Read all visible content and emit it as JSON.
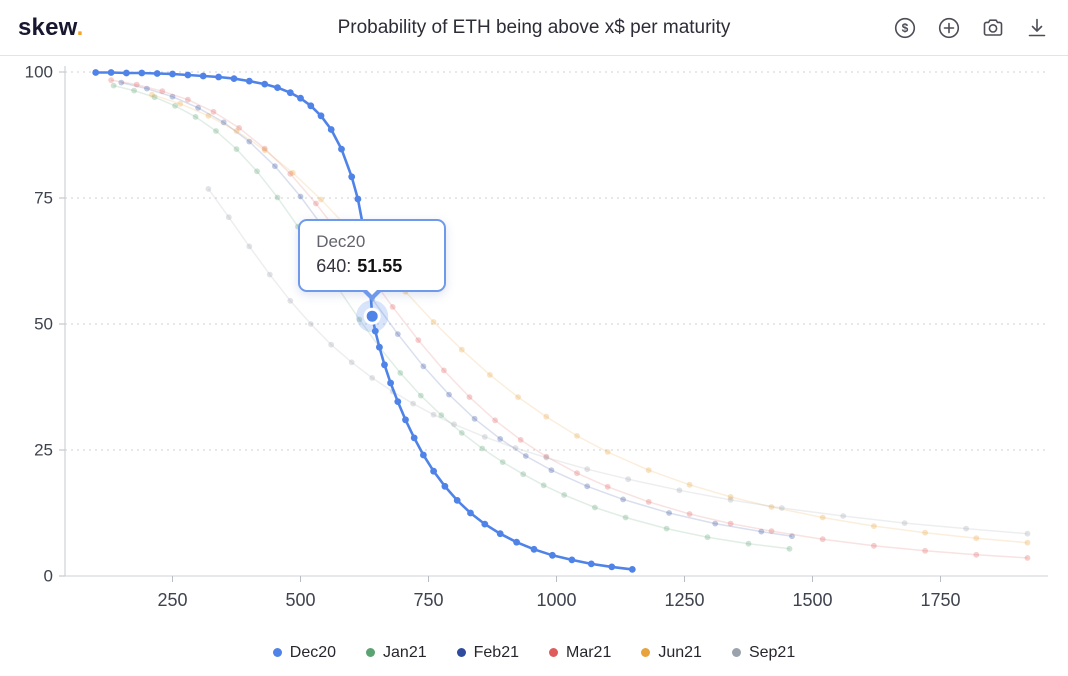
{
  "header": {
    "logo_text": "skew",
    "logo_dot": ".",
    "title": "Probability of ETH being above x$ per maturity",
    "icons": [
      {
        "name": "currency-icon",
        "glyph": "$"
      },
      {
        "name": "add-icon"
      },
      {
        "name": "camera-icon"
      },
      {
        "name": "download-icon"
      }
    ]
  },
  "tooltip": {
    "series": "Dec20",
    "x_label": "640:",
    "value": "51.55"
  },
  "chart_data": {
    "type": "line",
    "title": "Probability of ETH being above x$ per maturity",
    "xlabel": "",
    "ylabel": "",
    "xlim": [
      40,
      1960
    ],
    "ylim": [
      0,
      100
    ],
    "x_ticks": [
      250,
      500,
      750,
      1000,
      1250,
      1500,
      1750
    ],
    "y_ticks": [
      0,
      25,
      50,
      75,
      100
    ],
    "grid": "horizontal-dotted",
    "legend_position": "bottom",
    "highlight": {
      "series": "Dec20",
      "x": 640,
      "y": 51.55,
      "color": "#4f83e8"
    },
    "series": [
      {
        "name": "Dec20",
        "color": "#4f83e8",
        "active": true,
        "points": [
          [
            100,
            99.9
          ],
          [
            130,
            99.9
          ],
          [
            160,
            99.8
          ],
          [
            190,
            99.8
          ],
          [
            220,
            99.7
          ],
          [
            250,
            99.6
          ],
          [
            280,
            99.4
          ],
          [
            310,
            99.2
          ],
          [
            340,
            99.0
          ],
          [
            370,
            98.7
          ],
          [
            400,
            98.2
          ],
          [
            430,
            97.6
          ],
          [
            455,
            96.9
          ],
          [
            480,
            95.9
          ],
          [
            500,
            94.8
          ],
          [
            520,
            93.3
          ],
          [
            540,
            91.3
          ],
          [
            560,
            88.6
          ],
          [
            580,
            84.7
          ],
          [
            600,
            79.2
          ],
          [
            612,
            74.8
          ],
          [
            622,
            69.5
          ],
          [
            630,
            63.5
          ],
          [
            636,
            57.5
          ],
          [
            640,
            51.55
          ],
          [
            646,
            48.6
          ],
          [
            654,
            45.4
          ],
          [
            664,
            41.9
          ],
          [
            676,
            38.3
          ],
          [
            690,
            34.6
          ],
          [
            705,
            31.0
          ],
          [
            722,
            27.4
          ],
          [
            740,
            24.0
          ],
          [
            760,
            20.8
          ],
          [
            782,
            17.8
          ],
          [
            806,
            15.0
          ],
          [
            832,
            12.5
          ],
          [
            860,
            10.3
          ],
          [
            890,
            8.4
          ],
          [
            922,
            6.7
          ],
          [
            956,
            5.3
          ],
          [
            992,
            4.1
          ],
          [
            1030,
            3.2
          ],
          [
            1068,
            2.4
          ],
          [
            1108,
            1.8
          ],
          [
            1148,
            1.3
          ]
        ]
      },
      {
        "name": "Jan21",
        "color": "#5ba372",
        "active": false,
        "points": [
          [
            135,
            97.3
          ],
          [
            175,
            96.3
          ],
          [
            215,
            95.0
          ],
          [
            255,
            93.3
          ],
          [
            295,
            91.1
          ],
          [
            335,
            88.3
          ],
          [
            375,
            84.7
          ],
          [
            415,
            80.3
          ],
          [
            455,
            75.1
          ],
          [
            495,
            69.3
          ],
          [
            535,
            63.1
          ],
          [
            575,
            56.9
          ],
          [
            615,
            50.9
          ],
          [
            655,
            45.3
          ],
          [
            695,
            40.3
          ],
          [
            735,
            35.8
          ],
          [
            775,
            31.9
          ],
          [
            815,
            28.4
          ],
          [
            855,
            25.3
          ],
          [
            895,
            22.6
          ],
          [
            935,
            20.2
          ],
          [
            975,
            18.0
          ],
          [
            1015,
            16.1
          ],
          [
            1075,
            13.6
          ],
          [
            1135,
            11.6
          ],
          [
            1215,
            9.4
          ],
          [
            1295,
            7.7
          ],
          [
            1375,
            6.4
          ],
          [
            1455,
            5.4
          ]
        ]
      },
      {
        "name": "Feb21",
        "color": "#2f4b9e",
        "active": false,
        "points": [
          [
            150,
            97.9
          ],
          [
            200,
            96.7
          ],
          [
            250,
            95.1
          ],
          [
            300,
            92.9
          ],
          [
            350,
            90.0
          ],
          [
            400,
            86.2
          ],
          [
            450,
            81.3
          ],
          [
            500,
            75.3
          ],
          [
            550,
            68.4
          ],
          [
            600,
            61.0
          ],
          [
            640,
            55.0
          ],
          [
            690,
            48.0
          ],
          [
            740,
            41.6
          ],
          [
            790,
            36.0
          ],
          [
            840,
            31.2
          ],
          [
            890,
            27.2
          ],
          [
            940,
            23.8
          ],
          [
            990,
            21.0
          ],
          [
            1060,
            17.8
          ],
          [
            1130,
            15.2
          ],
          [
            1220,
            12.5
          ],
          [
            1310,
            10.4
          ],
          [
            1400,
            8.8
          ],
          [
            1460,
            7.9
          ]
        ]
      },
      {
        "name": "Mar21",
        "color": "#e05c5c",
        "active": false,
        "points": [
          [
            130,
            98.4
          ],
          [
            180,
            97.5
          ],
          [
            230,
            96.2
          ],
          [
            280,
            94.5
          ],
          [
            330,
            92.1
          ],
          [
            380,
            88.9
          ],
          [
            430,
            84.8
          ],
          [
            480,
            79.8
          ],
          [
            530,
            73.9
          ],
          [
            580,
            67.3
          ],
          [
            630,
            60.3
          ],
          [
            680,
            53.4
          ],
          [
            730,
            46.8
          ],
          [
            780,
            40.8
          ],
          [
            830,
            35.5
          ],
          [
            880,
            30.9
          ],
          [
            930,
            27.0
          ],
          [
            980,
            23.7
          ],
          [
            1040,
            20.4
          ],
          [
            1100,
            17.7
          ],
          [
            1180,
            14.7
          ],
          [
            1260,
            12.3
          ],
          [
            1340,
            10.4
          ],
          [
            1420,
            8.9
          ],
          [
            1520,
            7.3
          ],
          [
            1620,
            6.0
          ],
          [
            1720,
            5.0
          ],
          [
            1820,
            4.2
          ],
          [
            1920,
            3.6
          ]
        ]
      },
      {
        "name": "Jun21",
        "color": "#e8a33d",
        "active": false,
        "points": [
          [
            210,
            95.5
          ],
          [
            265,
            93.7
          ],
          [
            320,
            91.3
          ],
          [
            375,
            88.3
          ],
          [
            430,
            84.5
          ],
          [
            485,
            80.0
          ],
          [
            540,
            74.7
          ],
          [
            595,
            68.8
          ],
          [
            650,
            62.6
          ],
          [
            705,
            56.4
          ],
          [
            760,
            50.4
          ],
          [
            815,
            44.9
          ],
          [
            870,
            39.9
          ],
          [
            925,
            35.5
          ],
          [
            980,
            31.6
          ],
          [
            1040,
            27.8
          ],
          [
            1100,
            24.6
          ],
          [
            1180,
            21.0
          ],
          [
            1260,
            18.1
          ],
          [
            1340,
            15.7
          ],
          [
            1420,
            13.7
          ],
          [
            1520,
            11.6
          ],
          [
            1620,
            9.9
          ],
          [
            1720,
            8.6
          ],
          [
            1820,
            7.5
          ],
          [
            1920,
            6.6
          ]
        ]
      },
      {
        "name": "Sep21",
        "color": "#9aa3ad",
        "active": false,
        "points": [
          [
            320,
            76.8
          ],
          [
            360,
            71.2
          ],
          [
            400,
            65.4
          ],
          [
            440,
            59.8
          ],
          [
            480,
            54.6
          ],
          [
            520,
            50.0
          ],
          [
            560,
            45.9
          ],
          [
            600,
            42.4
          ],
          [
            640,
            39.3
          ],
          [
            680,
            36.6
          ],
          [
            720,
            34.2
          ],
          [
            760,
            32.0
          ],
          [
            800,
            30.1
          ],
          [
            860,
            27.6
          ],
          [
            920,
            25.4
          ],
          [
            980,
            23.5
          ],
          [
            1060,
            21.2
          ],
          [
            1140,
            19.2
          ],
          [
            1240,
            17.0
          ],
          [
            1340,
            15.1
          ],
          [
            1440,
            13.5
          ],
          [
            1560,
            11.9
          ],
          [
            1680,
            10.5
          ],
          [
            1800,
            9.4
          ],
          [
            1920,
            8.4
          ]
        ]
      }
    ]
  }
}
